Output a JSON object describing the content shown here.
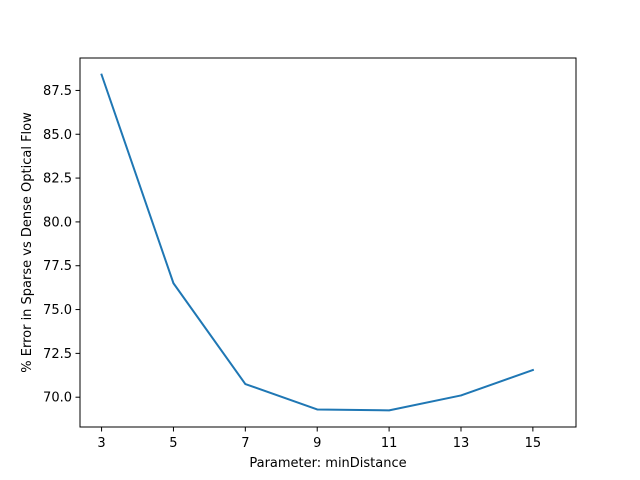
{
  "chart_data": {
    "type": "line",
    "title": "",
    "xlabel": "Parameter: minDistance",
    "ylabel": "% Error in Sparse vs Dense Optical Flow",
    "x": [
      3,
      5,
      7,
      9,
      11,
      13,
      15
    ],
    "series": [
      {
        "values": [
          88.4,
          76.5,
          70.75,
          69.3,
          69.25,
          70.1,
          71.55
        ],
        "color": "#1f77b4"
      }
    ],
    "xticks": [
      3,
      5,
      7,
      9,
      11,
      13,
      15
    ],
    "xtick_labels": [
      "3",
      "5",
      "7",
      "9",
      "11",
      "13",
      "15"
    ],
    "yticks": [
      70.0,
      72.5,
      75.0,
      77.5,
      80.0,
      82.5,
      85.0,
      87.5
    ],
    "ytick_labels": [
      "70.0",
      "72.5",
      "75.0",
      "77.5",
      "80.0",
      "82.5",
      "85.0",
      "87.5"
    ],
    "xlim": [
      2.4,
      16.2
    ],
    "ylim": [
      68.3,
      89.35
    ],
    "grid": false,
    "legend": "none"
  }
}
